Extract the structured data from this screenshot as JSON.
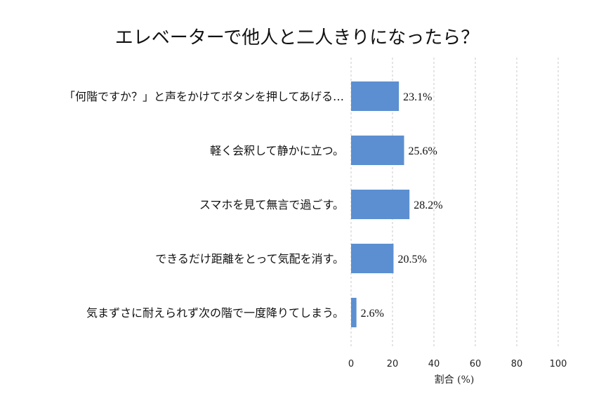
{
  "chart_data": {
    "type": "bar",
    "orientation": "horizontal",
    "title": "エレベーターで他人と二人きりになったら？",
    "xlabel": "割合 (%)",
    "ylabel": "",
    "xlim": [
      0,
      100
    ],
    "xticks": [
      0,
      20,
      40,
      60,
      80,
      100
    ],
    "grid": true,
    "categories": [
      "「何階ですか？」と声をかけてボタンを押してあげる…",
      "軽く会釈して静かに立つ。",
      "スマホを見て無言で過ごす。",
      "できるだけ距離をとって気配を消す。",
      "気まずさに耐えられず次の階で一度降りてしまう。"
    ],
    "values": [
      23.1,
      25.6,
      28.2,
      20.5,
      2.6
    ],
    "data_labels": [
      "23.1%",
      "25.6%",
      "28.2%",
      "20.5%",
      "2.6%"
    ],
    "colors": {
      "bar": "#5b8fd1"
    }
  }
}
